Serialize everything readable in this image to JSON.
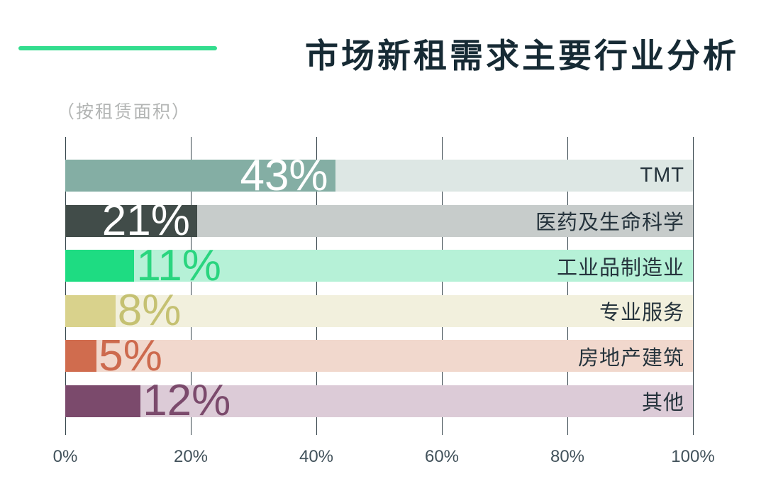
{
  "title": "市场新租需求主要行业分析",
  "subtitle": "（按租赁面积）",
  "colors": {
    "accent_line": "#33dd8e",
    "title_text": "#162a34",
    "subtitle_text": "#b3b5b4",
    "gridline": "#36454c",
    "axis_label": "#42525b",
    "category_label": "#25333c"
  },
  "chart_data": {
    "type": "bar",
    "orientation": "horizontal",
    "title": "市场新租需求主要行业分析",
    "subtitle": "（按租赁面积）",
    "categories": [
      "TMT",
      "医药及生命科学",
      "工业品制造业",
      "专业服务",
      "房地产建筑",
      "其他"
    ],
    "values": [
      43,
      21,
      11,
      8,
      5,
      12
    ],
    "value_labels": [
      "43%",
      "21%",
      "11%",
      "8%",
      "5%",
      "12%"
    ],
    "xlim": [
      0,
      100
    ],
    "x_ticks": [
      0,
      20,
      40,
      60,
      80,
      100
    ],
    "x_tick_labels": [
      "0%",
      "20%",
      "40%",
      "60%",
      "80%",
      "100%"
    ],
    "grid": true,
    "legend": false,
    "bar_colors": [
      "#84aea4",
      "#414c49",
      "#1edc82",
      "#d9d28c",
      "#d06c4e",
      "#7b4a6c"
    ],
    "track_colors": [
      "#dde7e4",
      "#c7cccb",
      "#b6f1d7",
      "#f2f0dd",
      "#f1d8cd",
      "#dccbd7"
    ],
    "value_label_colors": [
      "#ffffff",
      "#ffffff",
      "#2ad57f",
      "#c5c172",
      "#cd6a4e",
      "#7b4a6c"
    ],
    "value_label_placement": [
      "inside",
      "inside",
      "outside",
      "outside",
      "outside",
      "outside"
    ]
  }
}
